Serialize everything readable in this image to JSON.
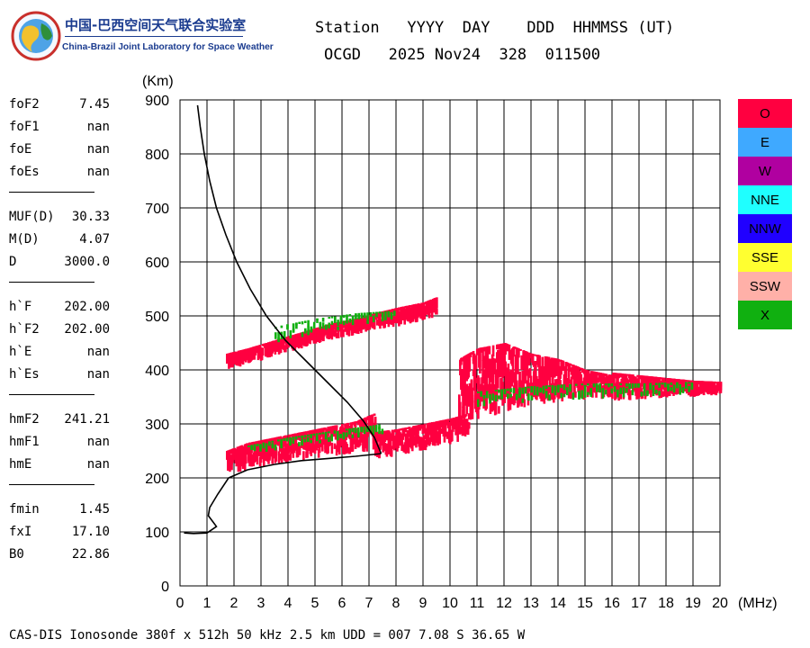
{
  "logo": {
    "chinese_name": "中国-巴西空间天气联合实验室",
    "english_name": "China-Brazil Joint Laboratory for Space Weather"
  },
  "header": {
    "labels_line": "Station   YYYY  DAY    DDD  HHMMSS (UT)",
    "values_line": "OCGD   2025 Nov24  328  011500"
  },
  "parameters": [
    {
      "name": "foF2",
      "value": "7.45"
    },
    {
      "name": "foF1",
      "value": "nan"
    },
    {
      "name": "foE",
      "value": "nan"
    },
    {
      "name": "foEs",
      "value": "nan"
    },
    {
      "separator": true
    },
    {
      "name": "MUF(D)",
      "value": "30.33"
    },
    {
      "name": "M(D)",
      "value": "4.07"
    },
    {
      "name": "D",
      "value": "3000.0"
    },
    {
      "separator": true
    },
    {
      "name": "h`F",
      "value": "202.00"
    },
    {
      "name": "h`F2",
      "value": "202.00"
    },
    {
      "name": "h`E",
      "value": "nan"
    },
    {
      "name": "h`Es",
      "value": "nan"
    },
    {
      "separator": true
    },
    {
      "name": "hmF2",
      "value": "241.21"
    },
    {
      "name": "hmF1",
      "value": "nan"
    },
    {
      "name": "hmE",
      "value": "nan"
    },
    {
      "separator": true
    },
    {
      "name": "fmin",
      "value": "1.45"
    },
    {
      "name": "fxI",
      "value": "17.10"
    },
    {
      "name": "B0",
      "value": "22.86"
    }
  ],
  "legend": [
    {
      "label": "O",
      "color": "#ff0040"
    },
    {
      "label": "E",
      "color": "#3fa9ff"
    },
    {
      "label": "W",
      "color": "#b000a0"
    },
    {
      "label": "NNE",
      "color": "#1fffff"
    },
    {
      "label": "NNW",
      "color": "#2000ff"
    },
    {
      "label": "SSE",
      "color": "#ffff30"
    },
    {
      "label": "SSW",
      "color": "#ffb0a8"
    },
    {
      "label": "X",
      "color": "#10b010"
    }
  ],
  "footer": "CAS-DIS Ionosonde 380f x 512h 50 kHz 2.5 km UDD = 007 7.08 S 36.65 W",
  "chart_data": {
    "type": "scatter",
    "xlabel": "(MHz)",
    "ylabel": "(Km)",
    "xlim": [
      0,
      20
    ],
    "ylim": [
      0,
      900
    ],
    "x_ticks": [
      0,
      1,
      2,
      3,
      4,
      5,
      6,
      7,
      8,
      9,
      10,
      11,
      12,
      13,
      14,
      15,
      16,
      17,
      18,
      19,
      20
    ],
    "y_ticks": [
      0,
      100,
      200,
      300,
      400,
      500,
      600,
      700,
      800,
      900
    ],
    "grid": true,
    "legend_position": "right",
    "traces": [
      {
        "name": "O",
        "color": "#ff0040",
        "segments": [
          {
            "x": [
              1.7,
              2.5,
              3.5,
              4.5,
              5.5,
              6.5,
              7.2
            ],
            "ymin": [
              205,
              215,
              225,
              232,
              240,
              245,
              250
            ],
            "ymax": [
              250,
              265,
              275,
              285,
              295,
              305,
              320
            ]
          },
          {
            "x": [
              7.2,
              8,
              9,
              10,
              10.7
            ],
            "ymin": [
              235,
              240,
              250,
              262,
              275
            ],
            "ymax": [
              285,
              290,
              300,
              310,
              320
            ]
          },
          {
            "x": [
              10.3,
              11,
              12,
              13,
              14,
              15,
              16
            ],
            "ymin": [
              290,
              305,
              320,
              335,
              340,
              345,
              345
            ],
            "ymax": [
              420,
              440,
              450,
              430,
              420,
              400,
              390
            ]
          },
          {
            "x": [
              16,
              17,
              18,
              19,
              20
            ],
            "ymin": [
              340,
              345,
              348,
              350,
              352
            ],
            "ymax": [
              395,
              390,
              385,
              380,
              378
            ]
          },
          {
            "x": [
              1.7,
              2.5,
              3.5,
              4.5,
              5.5,
              6.5,
              7.2,
              8,
              9,
              9.5
            ],
            "ymin": [
              400,
              410,
              425,
              440,
              455,
              465,
              475,
              480,
              490,
              500
            ],
            "ymax": [
              430,
              440,
              455,
              470,
              485,
              495,
              505,
              515,
              525,
              535
            ]
          }
        ]
      },
      {
        "name": "X",
        "color": "#10b010",
        "segments": [
          {
            "x": [
              2.5,
              4,
              6,
              7.5
            ],
            "ymin": [
              240,
              255,
              270,
              280
            ],
            "ymax": [
              260,
              275,
              290,
              300
            ]
          },
          {
            "x": [
              3.5,
              5,
              6.5,
              8
            ],
            "ymin": [
              450,
              465,
              480,
              495
            ],
            "ymax": [
              480,
              495,
              505,
              510
            ]
          },
          {
            "x": [
              11,
              13,
              15,
              17,
              19
            ],
            "ymin": [
              330,
              340,
              345,
              350,
              355
            ],
            "ymax": [
              360,
              370,
              375,
              375,
              378
            ]
          }
        ]
      }
    ],
    "profile_curve": {
      "name": "electron density profile",
      "x": [
        0.65,
        0.75,
        0.9,
        1.1,
        1.35,
        1.7,
        2.1,
        2.6,
        3.2,
        3.9,
        4.7,
        5.5,
        6.2,
        6.8,
        7.2,
        7.45
      ],
      "y": [
        890,
        850,
        800,
        750,
        700,
        650,
        600,
        550,
        500,
        455,
        415,
        375,
        340,
        305,
        275,
        245
      ]
    },
    "bottom_curve": {
      "name": "bottomside profile",
      "x": [
        0.15,
        0.5,
        1.0,
        1.35,
        1.2,
        1.05,
        1.1,
        1.4,
        1.8,
        2.5,
        3.5,
        4.5,
        5.5,
        6.5,
        7.45
      ],
      "y": [
        98,
        97,
        98,
        110,
        120,
        130,
        145,
        170,
        200,
        215,
        225,
        232,
        236,
        240,
        245
      ]
    }
  }
}
